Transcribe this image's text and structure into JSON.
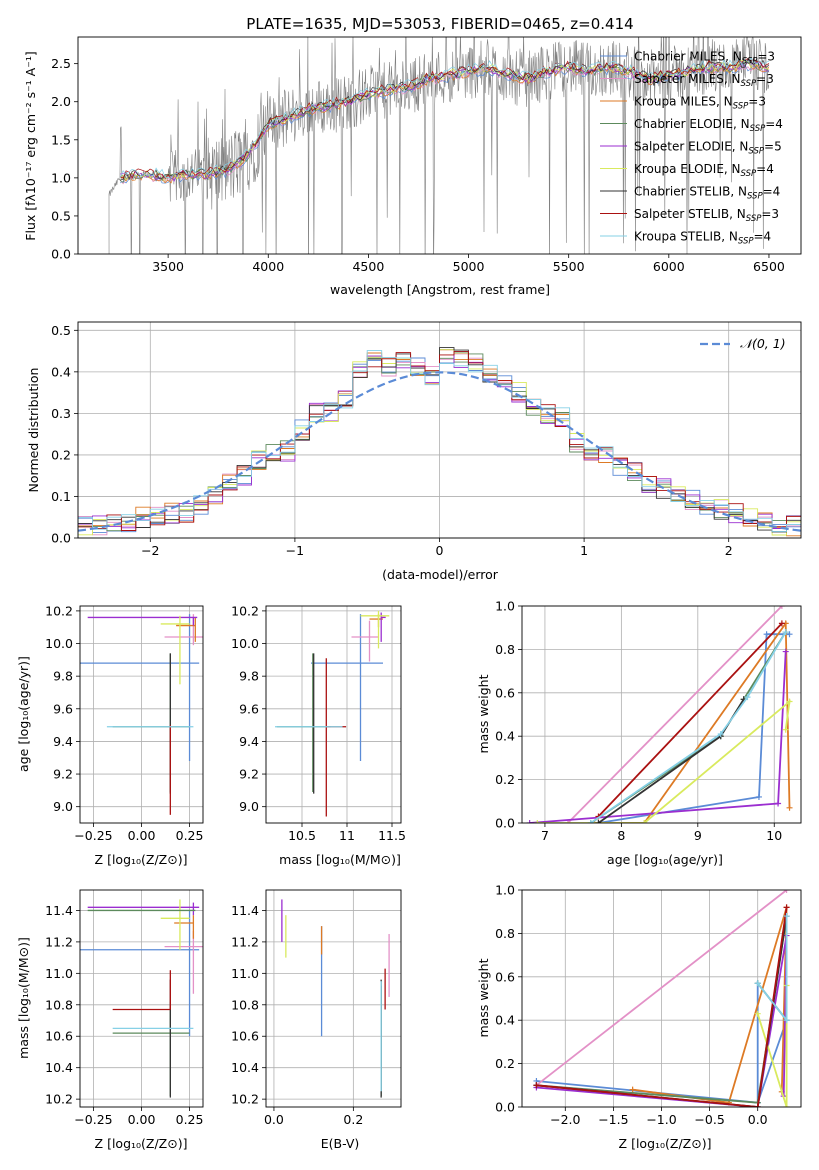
{
  "figure_title": "PLATE=1635, MJD=53053, FIBERID=0465, z=0.414",
  "colors": {
    "chabrier_miles": "#5b8bd6",
    "salpeter_miles": "#e391c7",
    "kroupa_miles": "#dd7a25",
    "chabrier_elodie": "#5c8a5c",
    "salpeter_elodie": "#9b2ed0",
    "kroupa_elodie": "#d9ea5e",
    "chabrier_stelib": "#333333",
    "salpeter_stelib": "#aa1111",
    "kroupa_stelib": "#86d0e6",
    "data": "#808080",
    "normal": "#5b8bd6"
  },
  "chart_data": [
    {
      "type": "line",
      "title": "PLATE=1635, MJD=53053, FIBERID=0465, z=0.414",
      "xlabel": "wavelength [Angstrom, rest frame]",
      "ylabel": "Flux [f_λ 10^-17 erg cm^-2 s^-1 A^-1]",
      "xlim": [
        3050,
        6660
      ],
      "ylim": [
        0,
        2.85
      ],
      "xticks": [
        3500,
        4000,
        4500,
        5000,
        5500,
        6000,
        6500
      ],
      "yticks": [
        0.0,
        0.5,
        1.0,
        1.5,
        2.0,
        2.5
      ],
      "legend_position": "top-right",
      "legend": [
        "Chabrier MILES, N_SSP=3",
        "Salpeter MILES, N_SSP=3",
        "Kroupa MILES, N_SSP=3",
        "Chabrier ELODIE, N_SSP=4",
        "Salpeter ELODIE, N_SSP=5",
        "Kroupa ELODIE, N_SSP=4",
        "Chabrier STELIB, N_SSP=4",
        "Salpeter STELIB, N_SSP=3",
        "Kroupa STELIB, N_SSP=4"
      ],
      "continuum": {
        "x": [
          3200,
          3260,
          3400,
          3500,
          3600,
          3700,
          3800,
          3900,
          4000,
          4100,
          4200,
          4300,
          4400,
          4500,
          4600,
          4700,
          4800,
          4900,
          5000,
          5100,
          5200,
          5300,
          5400,
          5500,
          5600,
          5700,
          5800,
          5900,
          6000,
          6100,
          6200,
          6300,
          6400,
          6500
        ],
        "y": [
          0.75,
          1.0,
          1.05,
          1.0,
          1.05,
          1.05,
          1.1,
          1.3,
          1.7,
          1.8,
          1.9,
          1.95,
          2.0,
          2.1,
          2.15,
          2.2,
          2.3,
          2.35,
          2.4,
          2.45,
          2.35,
          2.3,
          2.4,
          2.45,
          2.4,
          2.45,
          2.4,
          2.3,
          2.35,
          2.4,
          2.45,
          2.45,
          2.5,
          2.45
        ]
      }
    },
    {
      "type": "line",
      "xlabel": "(data-model)/error",
      "ylabel": "Normed distribution",
      "xlim": [
        -2.5,
        2.5
      ],
      "ylim": [
        0,
        0.52
      ],
      "xticks": [
        -2,
        -1,
        0,
        1,
        2
      ],
      "yticks": [
        0.0,
        0.1,
        0.2,
        0.3,
        0.4,
        0.5
      ],
      "legend_position": "top-right",
      "series": [
        {
          "name": "N(0,1)",
          "kind": "normal",
          "mean": 0,
          "sigma": 1
        }
      ],
      "histogram_centers": [
        -2.45,
        -2.35,
        -2.25,
        -2.15,
        -2.05,
        -1.95,
        -1.85,
        -1.75,
        -1.65,
        -1.55,
        -1.45,
        -1.35,
        -1.25,
        -1.15,
        -1.05,
        -0.95,
        -0.85,
        -0.75,
        -0.65,
        -0.55,
        -0.45,
        -0.35,
        -0.25,
        -0.15,
        -0.05,
        0.05,
        0.15,
        0.25,
        0.35,
        0.45,
        0.55,
        0.65,
        0.75,
        0.85,
        0.95,
        1.05,
        1.15,
        1.25,
        1.35,
        1.45,
        1.55,
        1.65,
        1.75,
        1.85,
        1.95,
        2.05,
        2.15,
        2.25,
        2.35,
        2.45
      ],
      "histogram_values": [
        0.03,
        0.03,
        0.04,
        0.04,
        0.05,
        0.05,
        0.06,
        0.06,
        0.08,
        0.1,
        0.13,
        0.15,
        0.19,
        0.2,
        0.21,
        0.26,
        0.3,
        0.3,
        0.33,
        0.4,
        0.43,
        0.41,
        0.43,
        0.41,
        0.39,
        0.44,
        0.43,
        0.42,
        0.4,
        0.38,
        0.35,
        0.31,
        0.3,
        0.29,
        0.23,
        0.21,
        0.2,
        0.17,
        0.16,
        0.13,
        0.12,
        0.11,
        0.09,
        0.08,
        0.07,
        0.06,
        0.05,
        0.04,
        0.03,
        0.03
      ]
    },
    {
      "type": "scatter",
      "xlabel": "Z [log10(Z/Z⊙)]",
      "ylabel": "age [log10(age/yr)]",
      "xlim": [
        -0.32,
        0.32
      ],
      "ylim": [
        8.9,
        10.23
      ],
      "xticks": [
        -0.25,
        0.0,
        0.25
      ],
      "yticks": [
        9.0,
        9.2,
        9.4,
        9.6,
        9.8,
        10.0,
        10.2
      ]
    },
    {
      "type": "scatter",
      "xlabel": "mass [log10(M/M⊙)]",
      "xlim": [
        10.1,
        11.6
      ],
      "ylim": [
        8.9,
        10.23
      ],
      "xticks": [
        10.5,
        11.0,
        11.5
      ],
      "yticks": [
        9.0,
        9.2,
        9.4,
        9.6,
        9.8,
        10.0,
        10.2
      ]
    },
    {
      "type": "line",
      "xlabel": "age [log10(age/yr)]",
      "ylabel": "mass weight",
      "xlim": [
        6.7,
        10.35
      ],
      "ylim": [
        0,
        1.0
      ],
      "xticks": [
        7,
        8,
        9,
        10
      ],
      "yticks": [
        0.0,
        0.2,
        0.4,
        0.6,
        0.8,
        1.0
      ]
    },
    {
      "type": "scatter",
      "xlabel": "Z [log10(Z/Z⊙)]",
      "ylabel": "mass [log10(M/M⊙)]",
      "xlim": [
        -0.32,
        0.32
      ],
      "ylim": [
        10.15,
        11.53
      ],
      "xticks": [
        -0.25,
        0.0,
        0.25
      ],
      "yticks": [
        10.2,
        10.4,
        10.6,
        10.8,
        11.0,
        11.2,
        11.4
      ]
    },
    {
      "type": "scatter",
      "xlabel": "E(B-V)",
      "xlim": [
        -0.02,
        0.32
      ],
      "ylim": [
        10.15,
        11.53
      ],
      "xticks": [
        0.0,
        0.2
      ],
      "yticks": [
        10.2,
        10.4,
        10.6,
        10.8,
        11.0,
        11.2,
        11.4
      ]
    },
    {
      "type": "line",
      "xlabel": "Z [log10(Z/Z⊙)]",
      "ylabel": "mass weight",
      "xlim": [
        -2.45,
        0.45
      ],
      "ylim": [
        0,
        1.0
      ],
      "xticks": [
        -2.0,
        -1.5,
        -1.0,
        -0.5,
        0.0
      ],
      "yticks": [
        0.0,
        0.2,
        0.4,
        0.6,
        0.8,
        1.0
      ]
    }
  ]
}
